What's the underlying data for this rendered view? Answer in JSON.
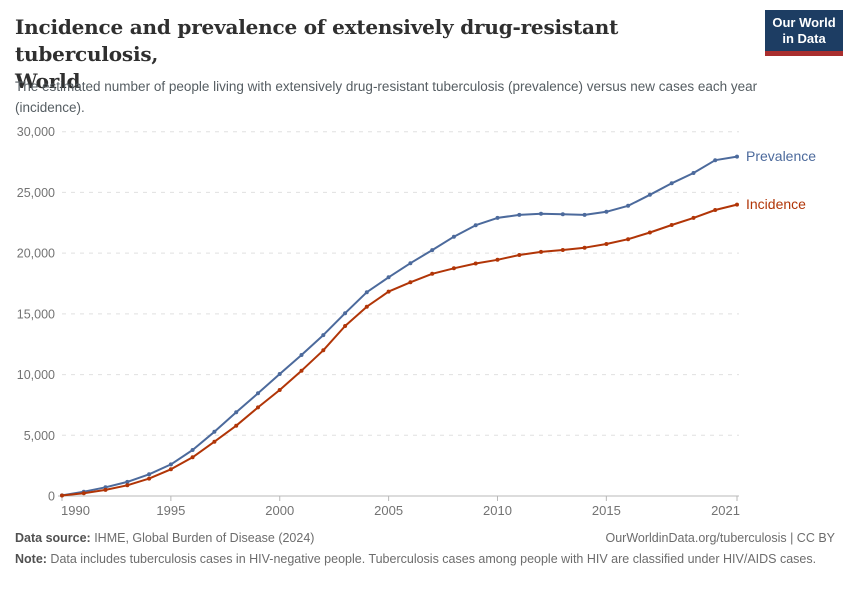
{
  "header": {
    "title_lines": [
      "Incidence and prevalence of extensively drug-resistant tuberculosis,",
      "World"
    ],
    "subtitle": "The estimated number of people living with extensively drug-resistant tuberculosis (prevalence) versus new cases each year (incidence).",
    "logo": {
      "line1": "Our World",
      "line2": "in Data",
      "bg_color": "#1d3d63",
      "accent_color": "#a92e2e"
    }
  },
  "chart_data": {
    "type": "line",
    "title": "Incidence and prevalence of extensively drug-resistant tuberculosis, World",
    "xlabel": "",
    "ylabel": "",
    "x": [
      1990,
      1991,
      1992,
      1993,
      1994,
      1995,
      1996,
      1997,
      1998,
      1999,
      2000,
      2001,
      2002,
      2003,
      2004,
      2005,
      2006,
      2007,
      2008,
      2009,
      2010,
      2011,
      2012,
      2013,
      2014,
      2015,
      2016,
      2017,
      2018,
      2019,
      2020,
      2021
    ],
    "series": [
      {
        "name": "Prevalence",
        "color": "#4C6A9C",
        "values": [
          50,
          350,
          720,
          1160,
          1790,
          2600,
          3790,
          5290,
          6890,
          8460,
          10050,
          11610,
          13250,
          15050,
          16780,
          18010,
          19170,
          20250,
          21350,
          22300,
          22900,
          23150,
          23250,
          23200,
          23150,
          23400,
          23900,
          24800,
          25750,
          26600,
          27650,
          27950
        ]
      },
      {
        "name": "Incidence",
        "color": "#B13507",
        "values": [
          40,
          230,
          500,
          880,
          1430,
          2200,
          3190,
          4470,
          5790,
          7300,
          8730,
          10320,
          12000,
          14000,
          15590,
          16830,
          17600,
          18300,
          18750,
          19150,
          19450,
          19850,
          20100,
          20260,
          20450,
          20750,
          21150,
          21700,
          22320,
          22900,
          23550,
          24000
        ]
      }
    ],
    "ylim": [
      0,
      30000
    ],
    "yticks": [
      0,
      5000,
      10000,
      15000,
      20000,
      25000,
      30000
    ],
    "xticks": [
      1990,
      1995,
      2000,
      2005,
      2010,
      2015,
      2021
    ],
    "grid": "horizontal-dashed",
    "legend_position": "end-of-line-labels",
    "axis_text_color": "#737373",
    "gridline_color": "#e0e0e0",
    "axis_line_color": "#b8b8b8"
  },
  "footer": {
    "datasource_label": "Data source:",
    "datasource_text": " IHME, Global Burden of Disease (2024)",
    "rights": "OurWorldinData.org/tuberculosis | CC BY",
    "note_label": "Note:",
    "note_text": " Data includes tuberculosis cases in HIV-negative people. Tuberculosis cases among people with HIV are classified under HIV/AIDS cases."
  }
}
